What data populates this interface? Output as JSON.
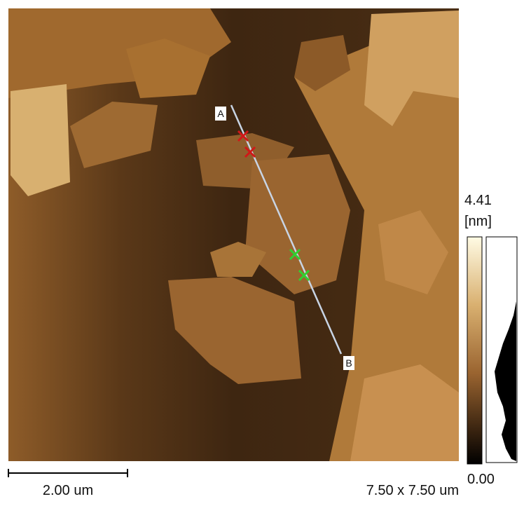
{
  "image": {
    "line_start_label": "A",
    "line_end_label": "B"
  },
  "colorbar": {
    "max": "4.41",
    "unit": "[nm]",
    "min": "0.00"
  },
  "scale_bar": {
    "label": "2.00 um"
  },
  "scan_size": "7.50 x 7.50 um"
}
